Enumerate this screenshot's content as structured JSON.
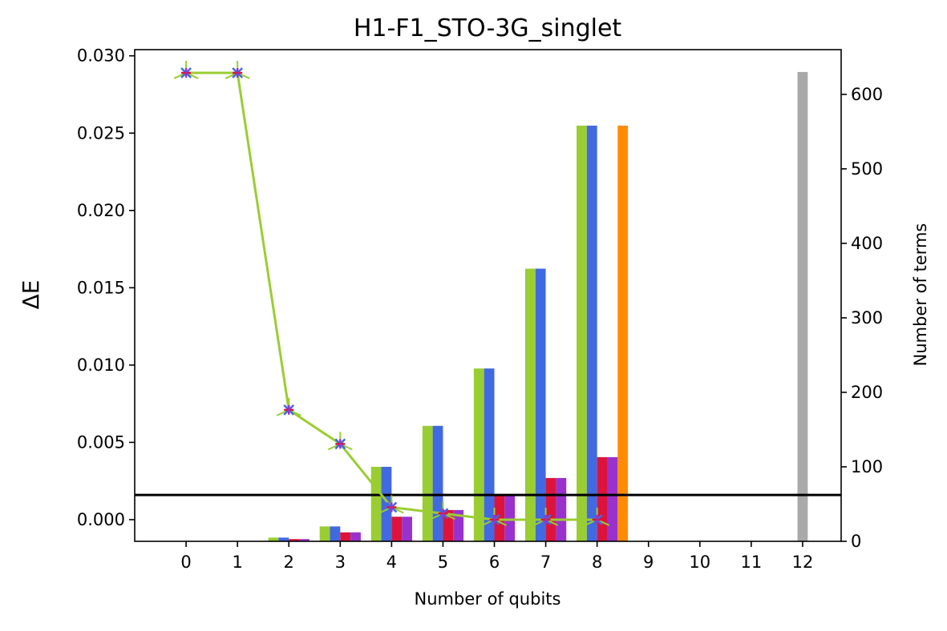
{
  "chart_data": {
    "type": "bar",
    "title": "H1-F1_STO-3G_singlet",
    "xlabel": "Number of qubits",
    "ylabel": "ΔE",
    "ylabel_right": "Number of terms",
    "x_ticks": [
      0,
      1,
      2,
      3,
      4,
      5,
      6,
      7,
      8,
      9,
      10,
      11,
      12
    ],
    "xlim": [
      -1,
      12.75
    ],
    "ylim_left": [
      -0.0014,
      0.0304
    ],
    "ylim_right": [
      0,
      660
    ],
    "y_ticks_left": [
      "0.000",
      "0.005",
      "0.010",
      "0.015",
      "0.020",
      "0.025",
      "0.030"
    ],
    "y_ticks_right": [
      0,
      100,
      200,
      300,
      400,
      500,
      600
    ],
    "grid": false,
    "legend": "none",
    "bar_series": [
      {
        "color": "#9ACD32",
        "offset": -0.3,
        "x": [
          2,
          3,
          4,
          5,
          6,
          7,
          8
        ],
        "values": [
          5,
          20,
          100,
          155,
          232,
          366,
          558
        ]
      },
      {
        "color": "#4169E1",
        "offset": -0.1,
        "x": [
          2,
          3,
          4,
          5,
          6,
          7,
          8
        ],
        "values": [
          5,
          20,
          100,
          155,
          232,
          366,
          558
        ]
      },
      {
        "color": "#DC143C",
        "offset": 0.1,
        "x": [
          2,
          3,
          4,
          5,
          6,
          7,
          8
        ],
        "values": [
          3,
          12,
          33,
          42,
          62,
          85,
          113
        ]
      },
      {
        "color": "#9932CC",
        "offset": 0.3,
        "x": [
          2,
          3,
          4,
          5,
          6,
          7,
          8
        ],
        "values": [
          3,
          12,
          33,
          42,
          62,
          85,
          113
        ]
      },
      {
        "color": "#FF8C00",
        "offset": 0.5,
        "x": [
          8
        ],
        "values": [
          558
        ]
      },
      {
        "color": "#A9A9A9",
        "offset": 0,
        "x": [
          12
        ],
        "values": [
          630
        ]
      }
    ],
    "line_series": {
      "color": "#9ACD32",
      "marker_colors": [
        "#4169E1",
        "#DC143C",
        "#9932CC"
      ],
      "x": [
        0,
        1,
        2,
        3,
        4,
        5,
        6,
        7,
        8
      ],
      "values": [
        0.0289,
        0.0289,
        0.0071,
        0.0049,
        0.0008,
        0.0004,
        0.0,
        0.0,
        0.0
      ]
    },
    "reference_line": {
      "value": 0.0016,
      "color": "#000000"
    }
  }
}
